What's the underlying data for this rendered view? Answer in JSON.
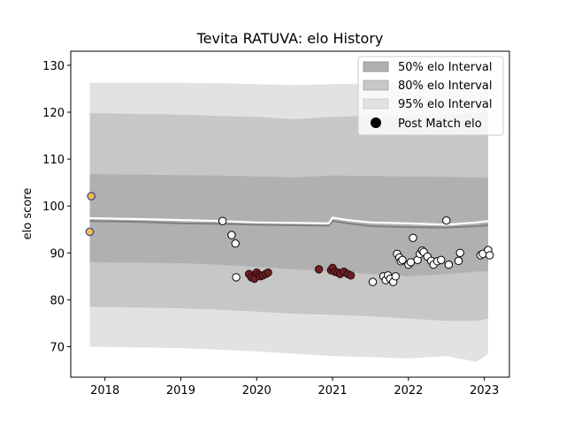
{
  "chart_data": {
    "type": "scatter",
    "title": "Tevita RATUVA: elo History",
    "xlabel": "",
    "ylabel": "elo score",
    "xlim": [
      2017.55,
      2023.33
    ],
    "ylim": [
      63.5,
      133.0
    ],
    "x_ticks": [
      2018,
      2019,
      2020,
      2021,
      2022,
      2023
    ],
    "y_ticks": [
      70,
      80,
      90,
      100,
      110,
      120,
      130
    ],
    "legend": {
      "position": "top-right",
      "entries": [
        {
          "label": "50% elo Interval",
          "color": "#b0b0b0"
        },
        {
          "label": "80% elo Interval",
          "color": "#c7c7c7"
        },
        {
          "label": "95% elo Interval",
          "color": "#e2e2e2"
        },
        {
          "label": "Post Match elo",
          "color": "#000000"
        }
      ]
    },
    "bands": {
      "x": [
        2017.8,
        2019.0,
        2019.5,
        2020.0,
        2020.5,
        2021.0,
        2021.5,
        2022.0,
        2022.5,
        2022.9,
        2023.05
      ],
      "p95_upper": [
        126.3,
        126.3,
        126.2,
        126.0,
        125.8,
        126.0,
        126.1,
        126.2,
        126.3,
        126.4,
        126.5
      ],
      "p80_upper": [
        119.8,
        119.5,
        119.2,
        119.0,
        118.5,
        119.0,
        119.2,
        119.3,
        119.5,
        119.8,
        120.0
      ],
      "p50_upper": [
        106.8,
        106.6,
        106.5,
        106.3,
        106.1,
        106.5,
        106.4,
        106.3,
        106.2,
        106.1,
        106.0
      ],
      "p50_lower": [
        88.0,
        87.8,
        87.5,
        87.0,
        86.5,
        86.0,
        85.5,
        85.0,
        85.5,
        86.0,
        86.0
      ],
      "p80_lower": [
        78.5,
        78.2,
        77.9,
        77.5,
        77.0,
        76.8,
        76.5,
        76.0,
        75.5,
        75.5,
        76.0
      ],
      "p95_lower": [
        70.0,
        69.7,
        69.4,
        69.0,
        68.5,
        68.0,
        67.8,
        67.5,
        68.0,
        66.8,
        68.5
      ]
    },
    "lines": {
      "x": [
        2017.8,
        2018.5,
        2019.0,
        2019.5,
        2020.0,
        2020.5,
        2020.95,
        2021.0,
        2021.2,
        2021.5,
        2022.0,
        2022.5,
        2022.9,
        2023.05
      ],
      "mean": [
        97.4,
        97.2,
        97.0,
        96.8,
        96.5,
        96.4,
        96.3,
        97.5,
        97.0,
        96.5,
        96.3,
        96.0,
        96.5,
        96.8
      ],
      "median": [
        96.8,
        96.6,
        96.3,
        96.2,
        96.0,
        95.9,
        95.8,
        96.8,
        96.3,
        95.7,
        95.5,
        95.4,
        95.7,
        95.9
      ]
    },
    "points_white": [
      [
        2019.55,
        96.8
      ],
      [
        2019.67,
        93.8
      ],
      [
        2019.72,
        92.0
      ],
      [
        2019.73,
        84.8
      ],
      [
        2021.53,
        83.8
      ],
      [
        2021.67,
        85.0
      ],
      [
        2021.7,
        84.2
      ],
      [
        2021.73,
        85.2
      ],
      [
        2021.76,
        84.5
      ],
      [
        2021.8,
        83.8
      ],
      [
        2021.83,
        85.0
      ],
      [
        2021.85,
        89.8
      ],
      [
        2021.88,
        89.0
      ],
      [
        2021.9,
        88.2
      ],
      [
        2021.92,
        88.5
      ],
      [
        2022.0,
        87.5
      ],
      [
        2022.03,
        88.0
      ],
      [
        2022.06,
        93.2
      ],
      [
        2022.12,
        88.5
      ],
      [
        2022.15,
        89.8
      ],
      [
        2022.18,
        90.5
      ],
      [
        2022.2,
        90.2
      ],
      [
        2022.25,
        89.2
      ],
      [
        2022.3,
        88.3
      ],
      [
        2022.33,
        87.5
      ],
      [
        2022.38,
        88.2
      ],
      [
        2022.43,
        88.5
      ],
      [
        2022.5,
        96.9
      ],
      [
        2022.53,
        87.5
      ],
      [
        2022.66,
        88.3
      ],
      [
        2022.68,
        90.0
      ],
      [
        2022.95,
        89.5
      ],
      [
        2022.98,
        89.8
      ],
      [
        2023.05,
        90.6
      ],
      [
        2023.07,
        89.5
      ]
    ],
    "points_dark": [
      [
        2019.9,
        85.5
      ],
      [
        2019.93,
        84.8
      ],
      [
        2019.97,
        84.5
      ],
      [
        2020.0,
        85.8
      ],
      [
        2020.03,
        85.3
      ],
      [
        2020.05,
        85.0
      ],
      [
        2020.08,
        85.2
      ],
      [
        2020.12,
        85.5
      ],
      [
        2020.15,
        85.8
      ],
      [
        2020.82,
        86.5
      ],
      [
        2020.98,
        86.3
      ],
      [
        2021.0,
        86.8
      ],
      [
        2021.03,
        86.0
      ],
      [
        2021.07,
        85.8
      ],
      [
        2021.1,
        85.5
      ],
      [
        2021.15,
        86.0
      ],
      [
        2021.2,
        85.5
      ],
      [
        2021.24,
        85.2
      ]
    ],
    "points_highlight": [
      [
        2017.82,
        102.1
      ],
      [
        2017.8,
        94.5
      ]
    ],
    "colors": {
      "p95": "#e2e2e2",
      "p80": "#c7c7c7",
      "p50": "#b0b0b0",
      "mean_line": "#ffffff",
      "median_line": "#808080",
      "point_white": "#ffffff",
      "point_dark": "#6e1f24",
      "point_highlight": "#f0c040",
      "point_highlight_edge": "#3a3aa0"
    }
  }
}
